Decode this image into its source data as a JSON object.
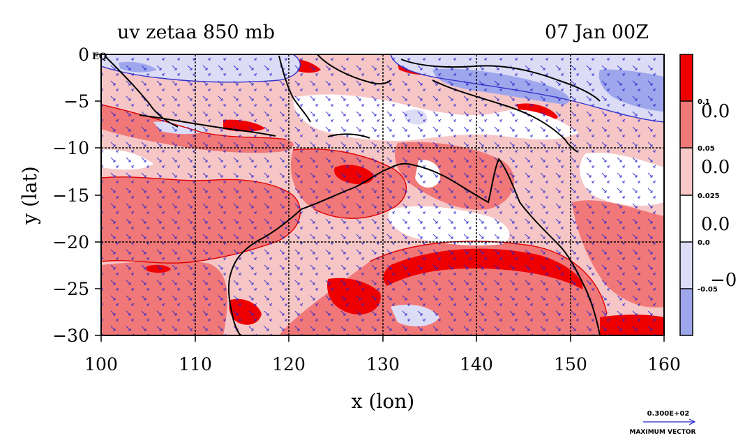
{
  "title": {
    "left": "uv zetaa 850 mb",
    "right": "07 Jan 00Z"
  },
  "axes": {
    "xlabel": "x (lon)",
    "ylabel": "y (lat)",
    "xticks": [
      "100",
      "110",
      "120",
      "130",
      "140",
      "150",
      "160"
    ],
    "yticks": [
      "0",
      "−5",
      "−10",
      "−15",
      "−20",
      "−25",
      "−30"
    ],
    "y_top_suffix": "EQ"
  },
  "colorbar": {
    "boundary_labels": [
      "0.1",
      "0.05",
      "0.025",
      "0.0",
      "-0.05"
    ],
    "partial_labels": [
      "0.0",
      "0.0",
      "0.0",
      "−0."
    ],
    "colors": [
      "#ee0000",
      "#f07878",
      "#f8c8c8",
      "#ffffff",
      "#dcdcf6",
      "#9ea6ec"
    ]
  },
  "vector_key": {
    "value": "0.300E+02",
    "label": "MAXIMUM VECTOR"
  },
  "chart_data": {
    "type": "heatmap",
    "title": "uv zetaa 850 mb",
    "time": "07 Jan 00Z",
    "xlabel": "x (lon)",
    "ylabel": "y (lat)",
    "xlim": [
      100,
      160
    ],
    "ylim": [
      -30,
      0
    ],
    "x_ticks": [
      100,
      110,
      120,
      130,
      140,
      150,
      160
    ],
    "y_ticks": [
      0,
      -5,
      -10,
      -15,
      -20,
      -25,
      -30
    ],
    "grid": true,
    "contour_levels": [
      -0.05,
      0.0,
      0.025,
      0.05,
      0.1
    ],
    "overlay": "wind vectors (u, v) with coastlines",
    "max_vector": 30.0
  }
}
